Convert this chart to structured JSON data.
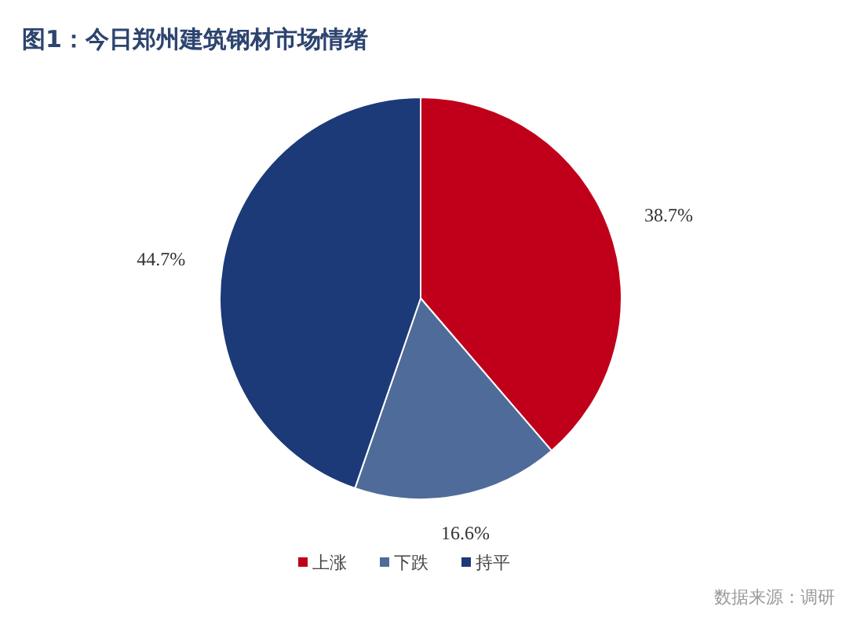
{
  "chart_data": {
    "type": "pie",
    "title": "图1：今日郑州建筑钢材市场情绪",
    "categories": [
      "上涨",
      "下跌",
      "持平"
    ],
    "values": [
      38.7,
      16.6,
      44.7
    ],
    "value_labels": [
      "38.7%",
      "16.6%",
      "44.7%"
    ],
    "colors": [
      "#c0001a",
      "#4f6b99",
      "#1c3a78"
    ],
    "legend": "bottom",
    "annotations": [
      "数据来源：调研"
    ]
  }
}
